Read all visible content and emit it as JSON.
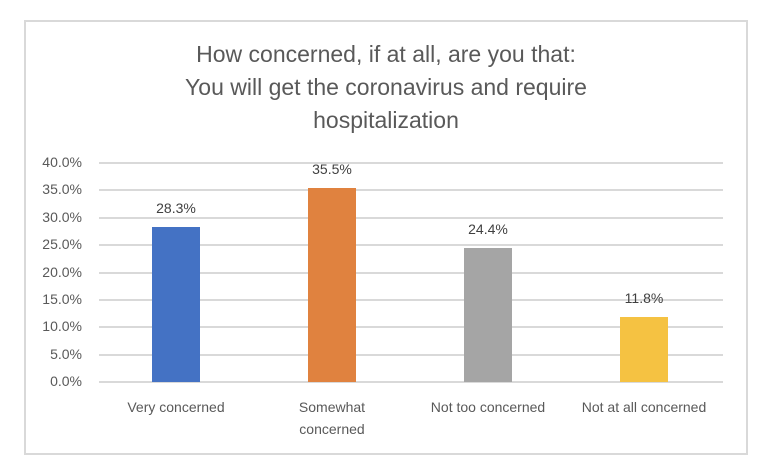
{
  "chart_data": {
    "type": "bar",
    "title": "How concerned, if at all, are you that: You will get the coronavirus and require hospitalization",
    "title_lines": [
      "How concerned, if at all, are you that:",
      "You will get the coronavirus and require",
      "hospitalization"
    ],
    "categories": [
      "Very concerned",
      "Somewhat concerned",
      "Not too concerned",
      "Not at all concerned"
    ],
    "category_lines": [
      [
        "Very concerned"
      ],
      [
        "Somewhat",
        "concerned"
      ],
      [
        "Not too concerned"
      ],
      [
        "Not at all concerned"
      ]
    ],
    "values": [
      28.3,
      35.5,
      24.4,
      11.8
    ],
    "data_labels": [
      "28.3%",
      "35.5%",
      "24.4%",
      "11.8%"
    ],
    "colors": [
      "#4472c4",
      "#e0823f",
      "#a5a5a5",
      "#f5c242"
    ],
    "xlabel": "",
    "ylabel": "",
    "ylim": [
      0,
      40
    ],
    "yticks": [
      "0.0%",
      "5.0%",
      "10.0%",
      "15.0%",
      "20.0%",
      "25.0%",
      "30.0%",
      "35.0%",
      "40.0%"
    ],
    "grid": true,
    "legend": "none"
  }
}
